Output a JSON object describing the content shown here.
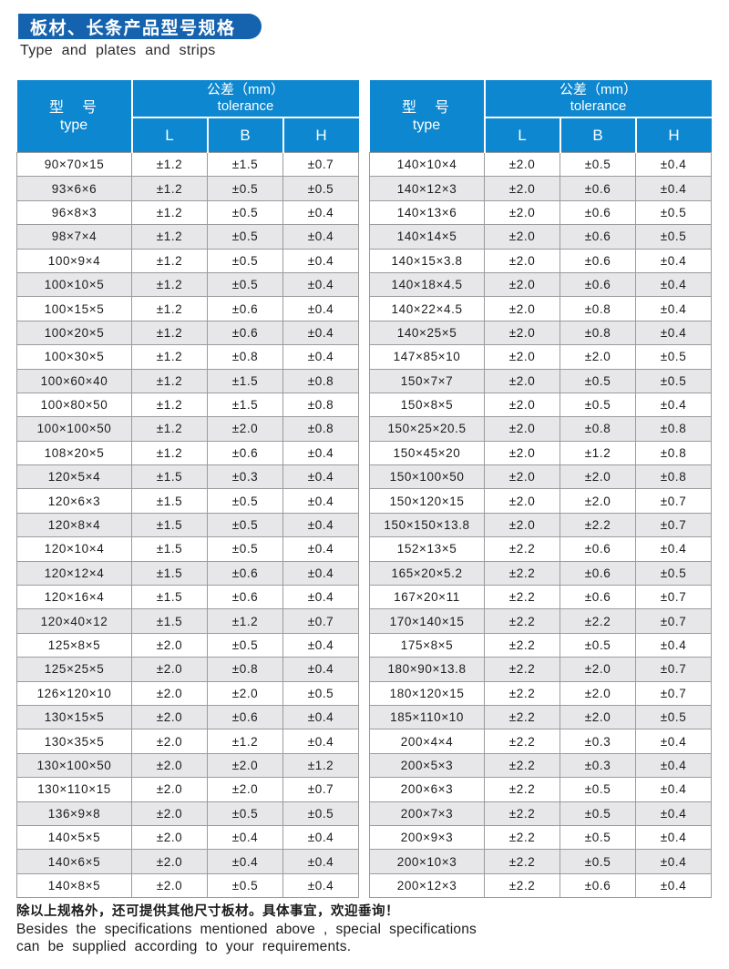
{
  "header": {
    "title_zh": "板材、长条产品型号规格",
    "subtitle_en": "Type and plates and strips"
  },
  "table_header": {
    "type_label_zh": "型　号",
    "type_label_en": "type",
    "tolerance_label_zh": "公差（mm）",
    "tolerance_label_en": "tolerance",
    "columns": [
      "L",
      "B",
      "H"
    ]
  },
  "tables": [
    {
      "name": "left",
      "rows": [
        [
          "90×70×15",
          "±1.2",
          "±1.5",
          "±0.7"
        ],
        [
          "93×6×6",
          "±1.2",
          "±0.5",
          "±0.5"
        ],
        [
          "96×8×3",
          "±1.2",
          "±0.5",
          "±0.4"
        ],
        [
          "98×7×4",
          "±1.2",
          "±0.5",
          "±0.4"
        ],
        [
          "100×9×4",
          "±1.2",
          "±0.5",
          "±0.4"
        ],
        [
          "100×10×5",
          "±1.2",
          "±0.5",
          "±0.4"
        ],
        [
          "100×15×5",
          "±1.2",
          "±0.6",
          "±0.4"
        ],
        [
          "100×20×5",
          "±1.2",
          "±0.6",
          "±0.4"
        ],
        [
          "100×30×5",
          "±1.2",
          "±0.8",
          "±0.4"
        ],
        [
          "100×60×40",
          "±1.2",
          "±1.5",
          "±0.8"
        ],
        [
          "100×80×50",
          "±1.2",
          "±1.5",
          "±0.8"
        ],
        [
          "100×100×50",
          "±1.2",
          "±2.0",
          "±0.8"
        ],
        [
          "108×20×5",
          "±1.2",
          "±0.6",
          "±0.4"
        ],
        [
          "120×5×4",
          "±1.5",
          "±0.3",
          "±0.4"
        ],
        [
          "120×6×3",
          "±1.5",
          "±0.5",
          "±0.4"
        ],
        [
          "120×8×4",
          "±1.5",
          "±0.5",
          "±0.4"
        ],
        [
          "120×10×4",
          "±1.5",
          "±0.5",
          "±0.4"
        ],
        [
          "120×12×4",
          "±1.5",
          "±0.6",
          "±0.4"
        ],
        [
          "120×16×4",
          "±1.5",
          "±0.6",
          "±0.4"
        ],
        [
          "120×40×12",
          "±1.5",
          "±1.2",
          "±0.7"
        ],
        [
          "125×8×5",
          "±2.0",
          "±0.5",
          "±0.4"
        ],
        [
          "125×25×5",
          "±2.0",
          "±0.8",
          "±0.4"
        ],
        [
          "126×120×10",
          "±2.0",
          "±2.0",
          "±0.5"
        ],
        [
          "130×15×5",
          "±2.0",
          "±0.6",
          "±0.4"
        ],
        [
          "130×35×5",
          "±2.0",
          "±1.2",
          "±0.4"
        ],
        [
          "130×100×50",
          "±2.0",
          "±2.0",
          "±1.2"
        ],
        [
          "130×110×15",
          "±2.0",
          "±2.0",
          "±0.7"
        ],
        [
          "136×9×8",
          "±2.0",
          "±0.5",
          "±0.5"
        ],
        [
          "140×5×5",
          "±2.0",
          "±0.4",
          "±0.4"
        ],
        [
          "140×6×5",
          "±2.0",
          "±0.4",
          "±0.4"
        ],
        [
          "140×8×5",
          "±2.0",
          "±0.5",
          "±0.4"
        ]
      ]
    },
    {
      "name": "right",
      "rows": [
        [
          "140×10×4",
          "±2.0",
          "±0.5",
          "±0.4"
        ],
        [
          "140×12×3",
          "±2.0",
          "±0.6",
          "±0.4"
        ],
        [
          "140×13×6",
          "±2.0",
          "±0.6",
          "±0.5"
        ],
        [
          "140×14×5",
          "±2.0",
          "±0.6",
          "±0.5"
        ],
        [
          "140×15×3.8",
          "±2.0",
          "±0.6",
          "±0.4"
        ],
        [
          "140×18×4.5",
          "±2.0",
          "±0.6",
          "±0.4"
        ],
        [
          "140×22×4.5",
          "±2.0",
          "±0.8",
          "±0.4"
        ],
        [
          "140×25×5",
          "±2.0",
          "±0.8",
          "±0.4"
        ],
        [
          "147×85×10",
          "±2.0",
          "±2.0",
          "±0.5"
        ],
        [
          "150×7×7",
          "±2.0",
          "±0.5",
          "±0.5"
        ],
        [
          "150×8×5",
          "±2.0",
          "±0.5",
          "±0.4"
        ],
        [
          "150×25×20.5",
          "±2.0",
          "±0.8",
          "±0.8"
        ],
        [
          "150×45×20",
          "±2.0",
          "±1.2",
          "±0.8"
        ],
        [
          "150×100×50",
          "±2.0",
          "±2.0",
          "±0.8"
        ],
        [
          "150×120×15",
          "±2.0",
          "±2.0",
          "±0.7"
        ],
        [
          "150×150×13.8",
          "±2.0",
          "±2.2",
          "±0.7"
        ],
        [
          "152×13×5",
          "±2.2",
          "±0.6",
          "±0.4"
        ],
        [
          "165×20×5.2",
          "±2.2",
          "±0.6",
          "±0.5"
        ],
        [
          "167×20×11",
          "±2.2",
          "±0.6",
          "±0.7"
        ],
        [
          "170×140×15",
          "±2.2",
          "±2.2",
          "±0.7"
        ],
        [
          "175×8×5",
          "±2.2",
          "±0.5",
          "±0.4"
        ],
        [
          "180×90×13.8",
          "±2.2",
          "±2.0",
          "±0.7"
        ],
        [
          "180×120×15",
          "±2.2",
          "±2.0",
          "±0.7"
        ],
        [
          "185×110×10",
          "±2.2",
          "±2.0",
          "±0.5"
        ],
        [
          "200×4×4",
          "±2.2",
          "±0.3",
          "±0.4"
        ],
        [
          "200×5×3",
          "±2.2",
          "±0.3",
          "±0.4"
        ],
        [
          "200×6×3",
          "±2.2",
          "±0.5",
          "±0.4"
        ],
        [
          "200×7×3",
          "±2.2",
          "±0.5",
          "±0.4"
        ],
        [
          "200×9×3",
          "±2.2",
          "±0.5",
          "±0.4"
        ],
        [
          "200×10×3",
          "±2.2",
          "±0.5",
          "±0.4"
        ],
        [
          "200×12×3",
          "±2.2",
          "±0.6",
          "±0.4"
        ]
      ]
    }
  ],
  "footer": {
    "line_zh": "除以上规格外，还可提供其他尺寸板材。具体事宜，欢迎垂询！",
    "line_en_1": "Besides the specifications mentioned above , special specifications",
    "line_en_2": "can be supplied according to your requirements."
  },
  "colors": {
    "title_bar_blue": "#1563AE",
    "table_header_blue": "#0D87CF",
    "row_alt_gray": "#E7E7E9",
    "grid_border_gray": "#9B9B9B"
  }
}
